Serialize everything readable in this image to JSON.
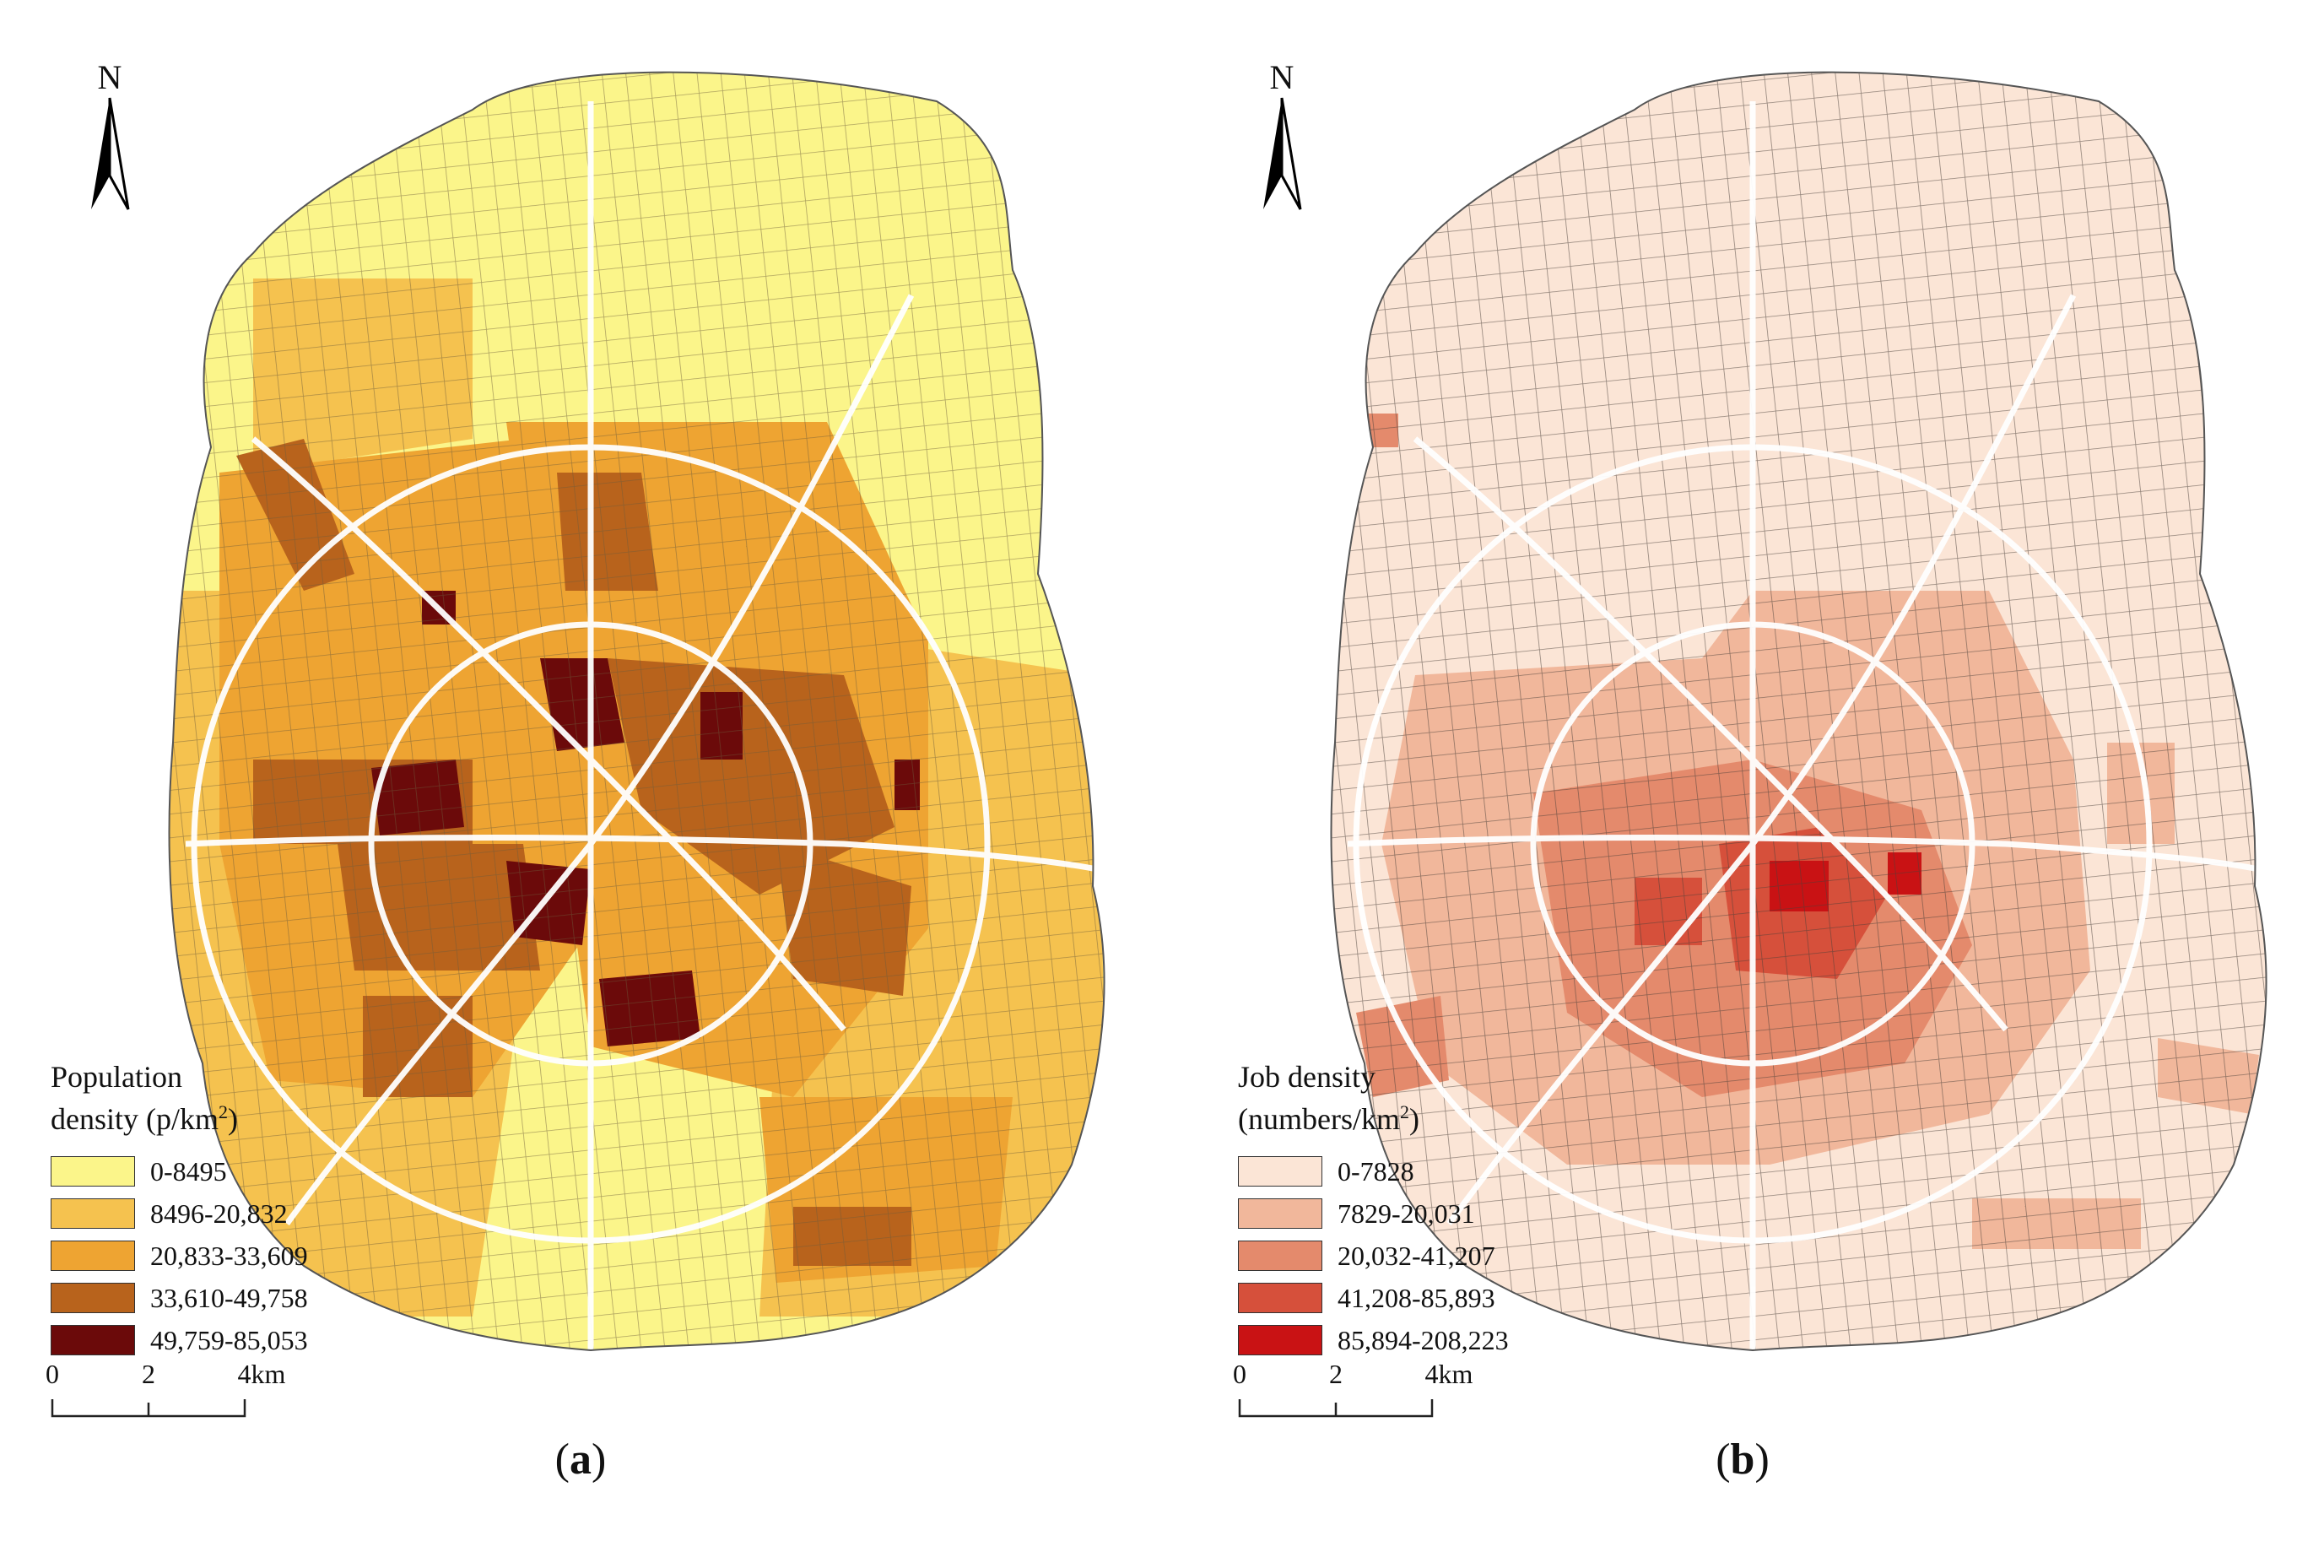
{
  "panels": [
    {
      "id": "a",
      "caption_letter": "a",
      "north_label": "N",
      "legend": {
        "title_line1": "Population",
        "title_line2_prefix": "density (p/km",
        "title_sup": "2",
        "title_line2_suffix": ")",
        "classes": [
          {
            "label": "0-8495",
            "color": "#fbf58a"
          },
          {
            "label": "8496-20,832",
            "color": "#f5c24f"
          },
          {
            "label": "20,833-33,609",
            "color": "#eea432"
          },
          {
            "label": "33,610-49,758",
            "color": "#b8631c"
          },
          {
            "label": "49,759-85,053",
            "color": "#6b0a0a"
          }
        ]
      },
      "scale": {
        "ticks": [
          "0",
          "2",
          "4km"
        ]
      }
    },
    {
      "id": "b",
      "caption_letter": "b",
      "north_label": "N",
      "legend": {
        "title_line1": "Job density",
        "title_line2_prefix": "(numbers/km",
        "title_sup": "2",
        "title_line2_suffix": ")",
        "classes": [
          {
            "label": "0-7828",
            "color": "#fbe5d6"
          },
          {
            "label": "7829-20,031",
            "color": "#f1b79b"
          },
          {
            "label": "20,032-41,207",
            "color": "#e48a6c"
          },
          {
            "label": "41,208-85,893",
            "color": "#d6503b"
          },
          {
            "label": "85,894-208,223",
            "color": "#c91214"
          }
        ]
      },
      "scale": {
        "ticks": [
          "0",
          "2",
          "4km"
        ]
      }
    }
  ]
}
